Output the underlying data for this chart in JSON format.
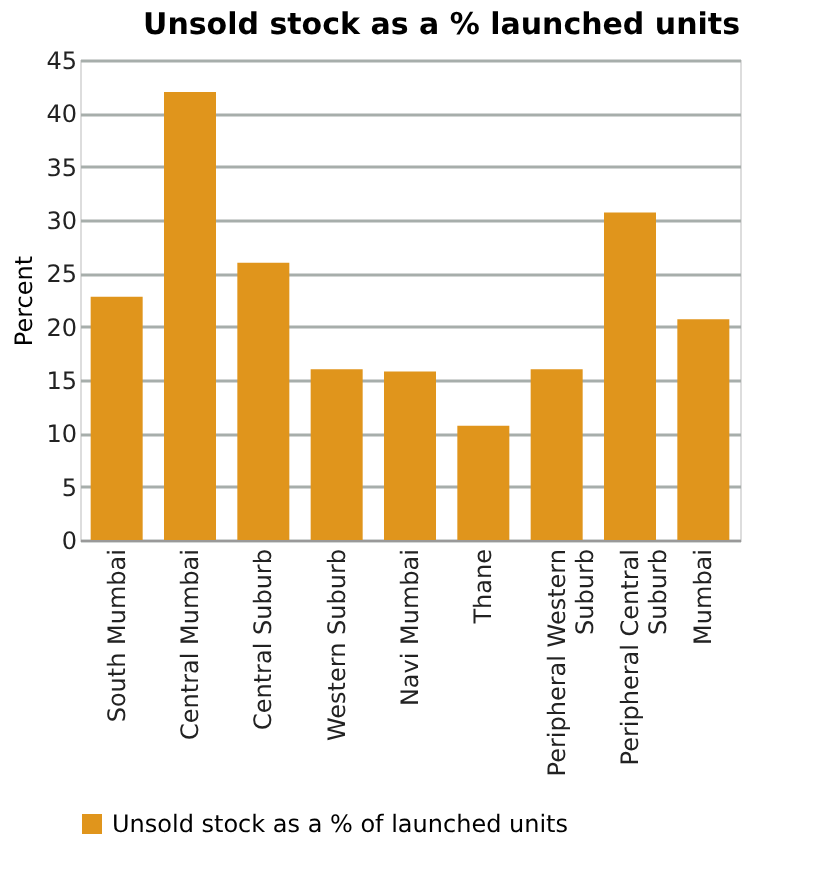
{
  "chart_data": {
    "type": "bar",
    "title": "Unsold stock as a % launched units",
    "ylabel": "Percent",
    "categories": [
      "South Mumbai",
      "Central Mumbai",
      "Central Suburb",
      "Western Suburb",
      "Navi Mumbai",
      "Thane",
      "Peripheral Western Suburb",
      "Peripheral Central Suburb",
      "Mumbai"
    ],
    "series": [
      {
        "name": "Unsold stock as a % of launched units",
        "color": "#e0951c",
        "values": [
          22.8,
          42,
          26,
          16,
          15.8,
          10.7,
          16,
          30.7,
          20.7
        ]
      }
    ],
    "ylim": [
      0,
      45
    ],
    "yticks": [
      0,
      5,
      10,
      15,
      20,
      25,
      30,
      35,
      40,
      45
    ],
    "grid": "y",
    "legend": "bottom"
  }
}
